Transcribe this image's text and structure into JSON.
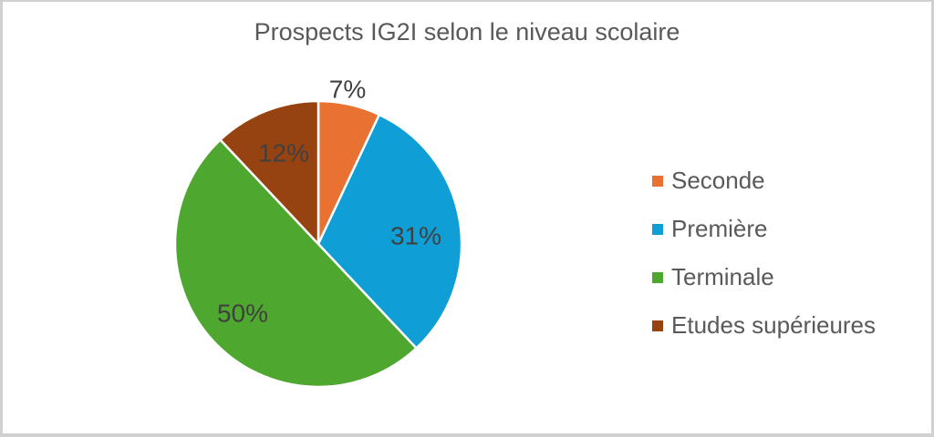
{
  "chart_data": {
    "type": "pie",
    "title": "Prospects IG2I selon le niveau scolaire",
    "categories": [
      "Seconde",
      "Première",
      "Terminale",
      "Etudes supérieures"
    ],
    "values": [
      7,
      31,
      50,
      12
    ],
    "labels": [
      "7%",
      "31%",
      "50%",
      "12%"
    ],
    "colors": [
      "#E97132",
      "#0F9ED5",
      "#4EA72E",
      "#974311"
    ],
    "legend_position": "right",
    "start_angle": "12 o'clock, clockwise"
  },
  "title": "Prospects IG2I selon le niveau scolaire",
  "legend": [
    {
      "label": "Seconde",
      "color": "#E97132"
    },
    {
      "label": "Première",
      "color": "#0F9ED5"
    },
    {
      "label": "Terminale",
      "color": "#4EA72E"
    },
    {
      "label": "Etudes supérieures",
      "color": "#974311"
    }
  ]
}
